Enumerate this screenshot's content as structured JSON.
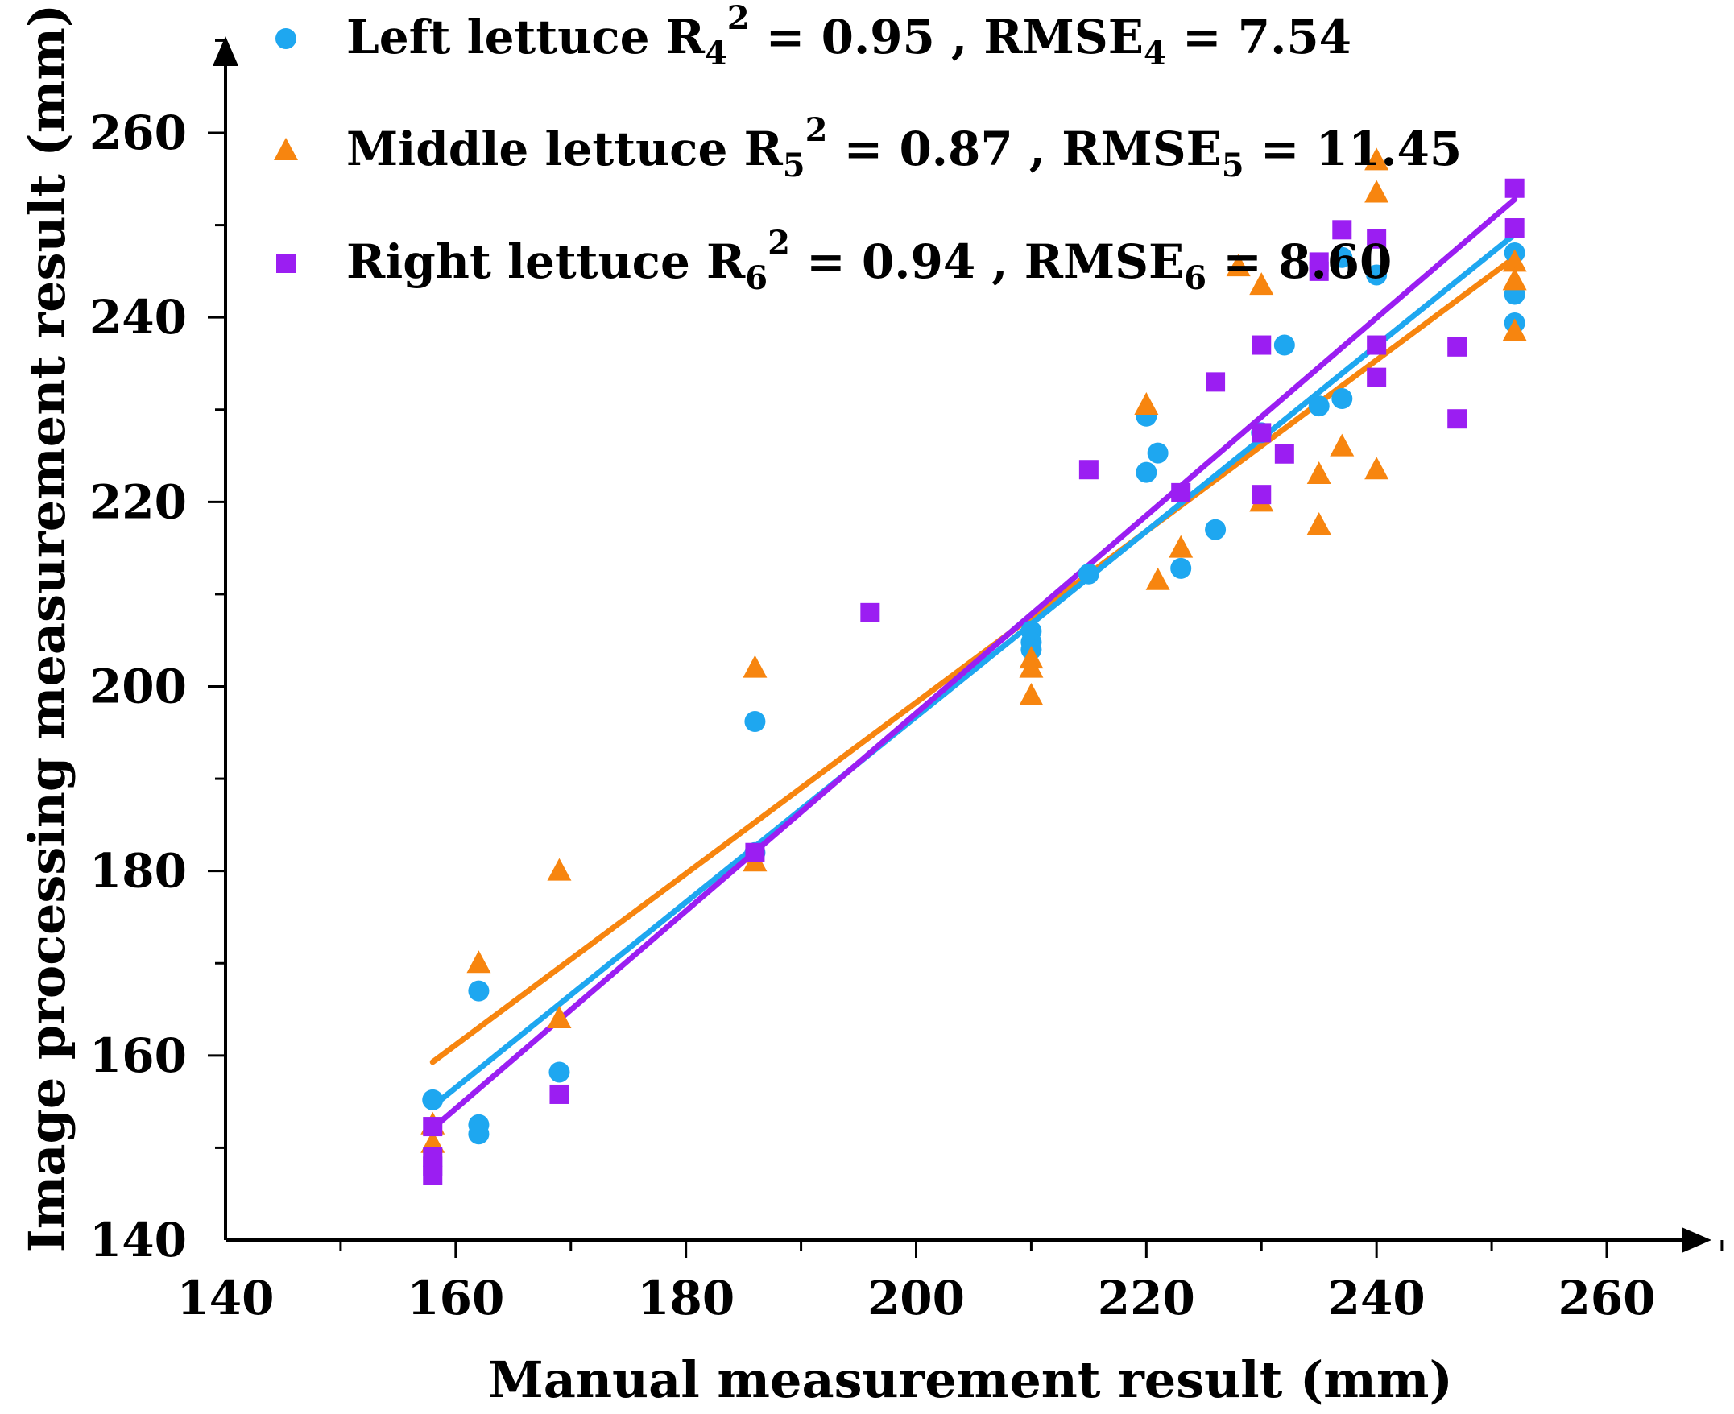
{
  "chart_data": {
    "type": "scatter",
    "xlabel": "Manual measurement result (mm)",
    "ylabel": "Image processing measurement result (mm)",
    "xlim": [
      140,
      270
    ],
    "ylim": [
      140,
      270
    ],
    "xticks": [
      140,
      160,
      180,
      200,
      220,
      240,
      260
    ],
    "yticks": [
      140,
      160,
      180,
      200,
      220,
      240,
      260
    ],
    "series": [
      {
        "name": "Left lettuce",
        "marker": "circle",
        "color": "#1ea7f0",
        "legend": {
          "prefix": "Left lettuce R",
          "sub1": "4",
          "sup": "2",
          "mid": " = 0.95  , RMSE",
          "sub2": "4",
          "suffix": " = 7.54"
        },
        "fit": {
          "x": [
            158,
            252
          ],
          "y": [
            154.5,
            249
          ]
        },
        "points": [
          [
            158,
            155.2
          ],
          [
            162,
            167
          ],
          [
            162,
            152.5
          ],
          [
            162,
            151.5
          ],
          [
            169,
            158.2
          ],
          [
            186,
            196.2
          ],
          [
            186,
            182
          ],
          [
            210,
            206
          ],
          [
            210,
            204.8
          ],
          [
            210,
            204
          ],
          [
            215,
            212.2
          ],
          [
            220,
            229.3
          ],
          [
            220,
            223.2
          ],
          [
            221,
            225.3
          ],
          [
            223,
            212.8
          ],
          [
            226,
            217
          ],
          [
            230,
            227.5
          ],
          [
            232,
            237
          ],
          [
            235,
            230.4
          ],
          [
            237,
            246.5
          ],
          [
            237,
            231.2
          ],
          [
            240,
            244.6
          ],
          [
            252,
            247
          ],
          [
            252,
            242.5
          ],
          [
            252,
            239.4
          ]
        ]
      },
      {
        "name": "Middle lettuce",
        "marker": "triangle",
        "color": "#f7850f",
        "legend": {
          "prefix": "Middle lettuce R",
          "sub1": "5",
          "sup": "2",
          "mid": " = 0.87 , RMSE",
          "sub2": "5",
          "suffix": " = 11.45"
        },
        "fit": {
          "x": [
            158,
            252
          ],
          "y": [
            159.3,
            246.5
          ]
        },
        "points": [
          [
            158,
            152.5
          ],
          [
            158,
            150.5
          ],
          [
            162,
            170
          ],
          [
            169,
            180
          ],
          [
            169,
            164
          ],
          [
            186,
            202
          ],
          [
            186,
            181
          ],
          [
            210,
            203
          ],
          [
            210,
            202
          ],
          [
            210,
            199
          ],
          [
            220,
            230.5
          ],
          [
            221,
            211.5
          ],
          [
            223,
            215
          ],
          [
            228,
            245.5
          ],
          [
            230,
            243.5
          ],
          [
            230,
            220
          ],
          [
            235,
            223
          ],
          [
            235,
            217.5
          ],
          [
            237,
            226
          ],
          [
            240,
            257
          ],
          [
            240,
            253.5
          ],
          [
            240,
            223.5
          ],
          [
            252,
            246
          ],
          [
            252,
            244
          ],
          [
            252,
            238.5
          ]
        ]
      },
      {
        "name": "Right lettuce",
        "marker": "square",
        "color": "#9b1ef2",
        "legend": {
          "prefix": "Right lettuce R",
          "sub1": "6",
          "sup": "2",
          "mid": " = 0.94 , RMSE",
          "sub2": "6",
          "suffix": " = 8.60"
        },
        "fit": {
          "x": [
            158,
            252
          ],
          "y": [
            152.1,
            252.8
          ]
        },
        "points": [
          [
            158,
            152.3
          ],
          [
            158,
            149
          ],
          [
            158,
            148
          ],
          [
            158,
            147
          ],
          [
            169,
            155.8
          ],
          [
            186,
            182
          ],
          [
            196,
            208
          ],
          [
            215,
            223.5
          ],
          [
            223,
            221
          ],
          [
            226,
            233
          ],
          [
            230,
            237
          ],
          [
            230,
            227.5
          ],
          [
            230,
            220.8
          ],
          [
            232,
            225.2
          ],
          [
            235,
            246
          ],
          [
            235,
            245
          ],
          [
            237,
            249.5
          ],
          [
            240,
            248.5
          ],
          [
            240,
            237
          ],
          [
            240,
            233.5
          ],
          [
            247,
            236.8
          ],
          [
            247,
            229
          ],
          [
            252,
            254
          ],
          [
            252,
            249.7
          ]
        ]
      }
    ]
  }
}
